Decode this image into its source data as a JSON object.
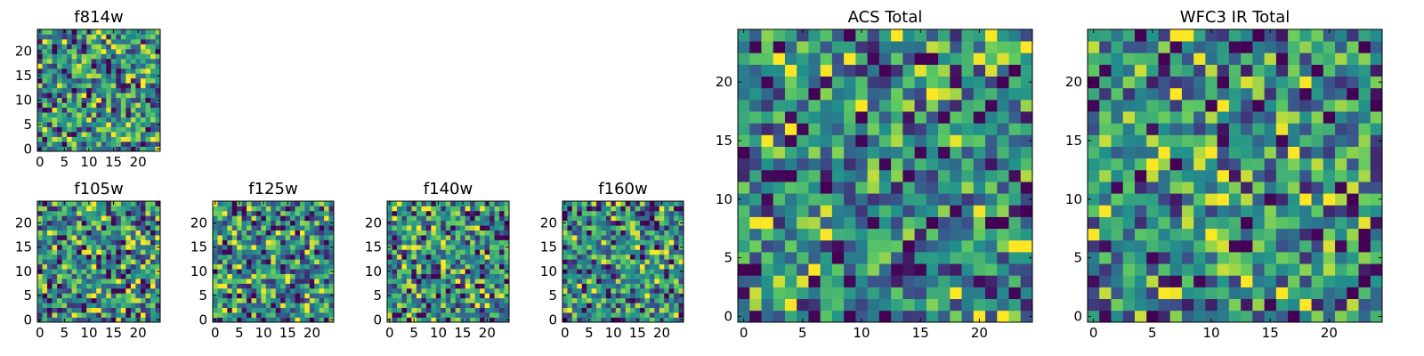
{
  "chart_data": [
    {
      "id": "f814w",
      "type": "heatmap",
      "title": "f814w",
      "xlabel": "",
      "ylabel": "",
      "grid_size": [
        25,
        25
      ],
      "colormap": "viridis",
      "xlim": [
        0,
        24
      ],
      "ylim": [
        0,
        24
      ],
      "xticks": [
        0,
        5,
        10,
        15,
        20
      ],
      "yticks": [
        0,
        5,
        10,
        15,
        20
      ],
      "grid": false,
      "values_note": ""
    },
    {
      "id": "f105w",
      "type": "heatmap",
      "title": "f105w",
      "xlabel": "",
      "ylabel": "",
      "grid_size": [
        25,
        25
      ],
      "colormap": "viridis",
      "xlim": [
        0,
        24
      ],
      "ylim": [
        0,
        24
      ],
      "xticks": [
        0,
        5,
        10,
        15,
        20
      ],
      "yticks": [
        0,
        5,
        10,
        15,
        20
      ],
      "grid": false
    },
    {
      "id": "f125w",
      "type": "heatmap",
      "title": "f125w",
      "xlabel": "",
      "ylabel": "",
      "grid_size": [
        25,
        25
      ],
      "colormap": "viridis",
      "xlim": [
        0,
        24
      ],
      "ylim": [
        0,
        24
      ],
      "xticks": [
        0,
        5,
        10,
        15,
        20
      ],
      "yticks": [
        0,
        5,
        10,
        15,
        20
      ],
      "grid": false
    },
    {
      "id": "f140w",
      "type": "heatmap",
      "title": "f140w",
      "xlabel": "",
      "ylabel": "",
      "grid_size": [
        25,
        25
      ],
      "colormap": "viridis",
      "xlim": [
        0,
        24
      ],
      "ylim": [
        0,
        24
      ],
      "xticks": [
        0,
        5,
        10,
        15,
        20
      ],
      "yticks": [
        0,
        5,
        10,
        15,
        20
      ],
      "grid": false
    },
    {
      "id": "f160w",
      "type": "heatmap",
      "title": "f160w",
      "xlabel": "",
      "ylabel": "",
      "grid_size": [
        25,
        25
      ],
      "colormap": "viridis",
      "xlim": [
        0,
        24
      ],
      "ylim": [
        0,
        24
      ],
      "xticks": [
        0,
        5,
        10,
        15,
        20
      ],
      "yticks": [
        0,
        5,
        10,
        15,
        20
      ],
      "grid": false
    },
    {
      "id": "acs-total",
      "type": "heatmap",
      "title": "ACS Total",
      "xlabel": "",
      "ylabel": "",
      "grid_size": [
        25,
        25
      ],
      "colormap": "viridis",
      "xlim": [
        0,
        24
      ],
      "ylim": [
        0,
        24
      ],
      "xticks": [
        0,
        5,
        10,
        15,
        20
      ],
      "yticks": [
        0,
        5,
        10,
        15,
        20
      ],
      "grid": false
    },
    {
      "id": "wfc3-ir-total",
      "type": "heatmap",
      "title": "WFC3 IR Total",
      "xlabel": "",
      "ylabel": "",
      "grid_size": [
        25,
        25
      ],
      "colormap": "viridis",
      "xlim": [
        0,
        24
      ],
      "ylim": [
        0,
        24
      ],
      "xticks": [
        0,
        5,
        10,
        15,
        20
      ],
      "yticks": [
        0,
        5,
        10,
        15,
        20
      ],
      "grid": false
    }
  ],
  "colors": {
    "viridis_stops": [
      "#440154",
      "#3b528b",
      "#21918c",
      "#5ec962",
      "#fde725"
    ]
  }
}
